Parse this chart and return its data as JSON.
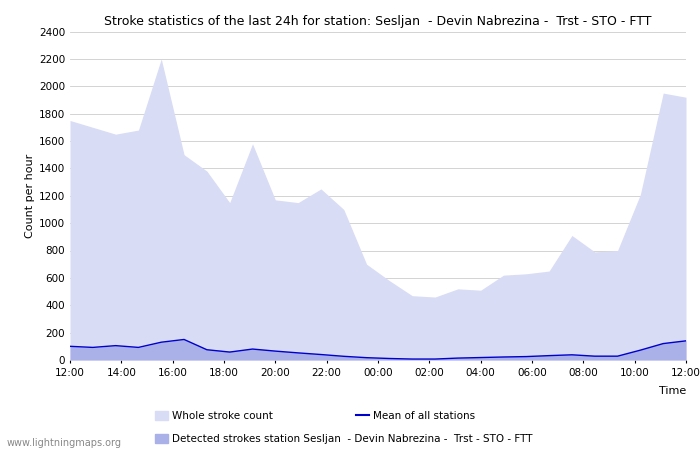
{
  "title": "Stroke statistics of the last 24h for station: Sesljan  - Devin Nabrezina -  Trst - STO - FTT",
  "xlabel": "Time",
  "ylabel": "Count per hour",
  "ylim": [
    0,
    2400
  ],
  "yticks": [
    0,
    200,
    400,
    600,
    800,
    1000,
    1200,
    1400,
    1600,
    1800,
    2000,
    2200,
    2400
  ],
  "x_labels": [
    "12:00",
    "14:00",
    "16:00",
    "18:00",
    "20:00",
    "22:00",
    "00:00",
    "02:00",
    "04:00",
    "06:00",
    "08:00",
    "10:00",
    "12:00"
  ],
  "background_color": "#ffffff",
  "plot_bg_color": "#ffffff",
  "grid_color": "#cccccc",
  "watermark": "www.lightningmaps.org",
  "whole_stroke_color": "#d8dcf5",
  "station_stroke_color": "#aab0e8",
  "mean_line_color": "#0000cc",
  "whole_stroke_data": [
    1750,
    1700,
    1650,
    1680,
    2200,
    1500,
    1380,
    1150,
    1580,
    1170,
    1150,
    1250,
    1100,
    700,
    580,
    470,
    460,
    520,
    510,
    620,
    630,
    650,
    910,
    790,
    800,
    1210,
    1950,
    1920
  ],
  "station_stroke_data": [
    100,
    90,
    105,
    90,
    130,
    150,
    80,
    65,
    85,
    68,
    55,
    40,
    28,
    18,
    12,
    8,
    8,
    15,
    20,
    25,
    28,
    35,
    40,
    30,
    30,
    75,
    125,
    145
  ],
  "mean_data": [
    100,
    92,
    105,
    92,
    130,
    150,
    75,
    58,
    80,
    65,
    52,
    40,
    27,
    17,
    11,
    7,
    7,
    14,
    18,
    22,
    25,
    32,
    38,
    28,
    28,
    72,
    120,
    140
  ],
  "legend_whole": "Whole stroke count",
  "legend_station": "Detected strokes station Sesljan  - Devin Nabrezina -  Trst - STO - FTT",
  "legend_mean": "Mean of all stations"
}
